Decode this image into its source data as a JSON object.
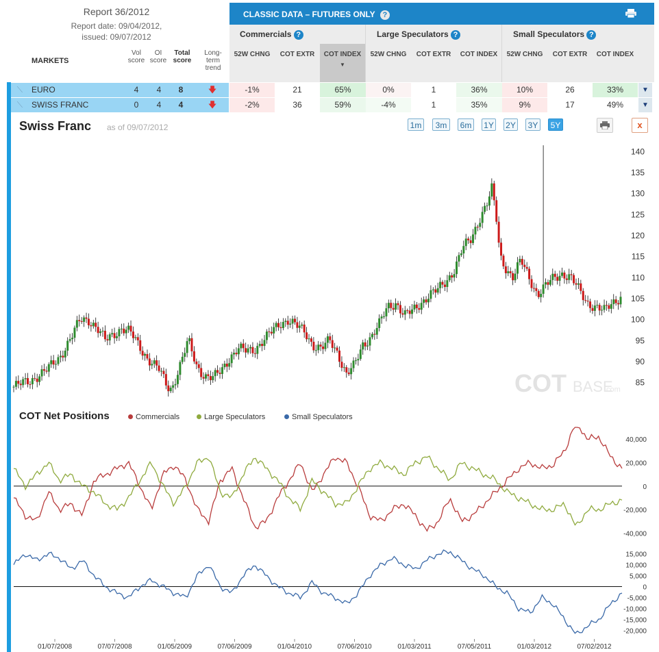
{
  "report": {
    "title": "Report 36/2012",
    "date": "Report date: 09/04/2012,",
    "issued": "issued: 09/07/2012"
  },
  "headers": {
    "markets": "MARKETS",
    "vol_score": "Vol score",
    "oi_score": "OI score",
    "total_score": "Total score",
    "trend": "Long-term trend"
  },
  "classic": {
    "title": "CLASSIC DATA – FUTURES ONLY",
    "help": "?",
    "groups": [
      "Commercials",
      "Large Speculators",
      "Small Speculators"
    ],
    "subcols": [
      "52W CHNG",
      "COT EXTR",
      "COT INDEX",
      "52W CHNG",
      "COT EXTR",
      "COT INDEX",
      "52W CHNG",
      "COT EXTR",
      "COT INDEX"
    ]
  },
  "rows": [
    {
      "market": "EURO",
      "vol": "4",
      "oi": "4",
      "total": "8",
      "values": [
        "-1%",
        "21",
        "65%",
        "0%",
        "1",
        "36%",
        "10%",
        "26",
        "33%"
      ]
    },
    {
      "market": "SWISS FRANC",
      "vol": "0",
      "oi": "4",
      "total": "4",
      "values": [
        "-2%",
        "36",
        "59%",
        "-4%",
        "1",
        "35%",
        "9%",
        "17",
        "49%"
      ]
    }
  ],
  "chart_header": {
    "title": "Swiss Franc",
    "as_of": "as of 09/07/2012",
    "ranges": [
      "1m",
      "3m",
      "6m",
      "1Y",
      "2Y",
      "3Y",
      "5Y"
    ],
    "active_range": "5Y",
    "close": "x"
  },
  "watermark": {
    "main": "COT",
    "suffix": "BASE",
    "dom": ".com"
  },
  "colors": {
    "commercials": "#b83c3c",
    "large": "#8faa3e",
    "small": "#3a69a8",
    "up": "#2e8b2e",
    "down": "#cc1a1a"
  },
  "cot": {
    "title": "COT Net Positions",
    "legend": [
      "Commercials",
      "Large Speculators",
      "Small Speculators"
    ]
  },
  "chart_data": [
    {
      "type": "candlestick",
      "title": "Swiss Franc",
      "ylim": [
        82,
        142
      ],
      "y_ticks": [
        85,
        90,
        95,
        100,
        105,
        110,
        115,
        120,
        125,
        130,
        135,
        140
      ],
      "x_ticks": [
        "01/07/2008",
        "07/07/2008",
        "01/05/2009",
        "07/06/2009",
        "01/04/2010",
        "07/06/2010",
        "01/03/2011",
        "07/05/2011",
        "01/03/2012",
        "07/02/2012"
      ],
      "trend_points": [
        [
          0,
          84
        ],
        [
          4,
          85.5
        ],
        [
          8,
          88
        ],
        [
          11,
          91
        ],
        [
          14,
          96
        ],
        [
          16,
          100
        ],
        [
          18,
          100
        ],
        [
          20,
          98
        ],
        [
          22,
          95
        ],
        [
          26,
          98
        ],
        [
          28,
          97
        ],
        [
          30,
          94
        ],
        [
          32,
          91
        ],
        [
          35,
          88
        ],
        [
          37,
          84
        ],
        [
          38,
          83.5
        ],
        [
          40,
          89
        ],
        [
          42,
          95
        ],
        [
          44,
          89
        ],
        [
          46,
          86.5
        ],
        [
          48,
          86
        ],
        [
          50,
          88
        ],
        [
          52,
          91
        ],
        [
          54,
          93
        ],
        [
          56,
          92.5
        ],
        [
          58,
          93
        ],
        [
          60,
          95
        ],
        [
          62,
          97
        ],
        [
          64,
          99
        ],
        [
          66,
          100
        ],
        [
          68,
          98.5
        ],
        [
          70,
          97
        ],
        [
          72,
          94
        ],
        [
          74,
          93
        ],
        [
          76,
          95
        ],
        [
          78,
          92
        ],
        [
          80,
          87
        ],
        [
          82,
          89
        ],
        [
          84,
          94
        ],
        [
          86,
          96
        ],
        [
          88,
          99
        ],
        [
          90,
          103
        ],
        [
          92,
          104
        ],
        [
          94,
          101
        ],
        [
          96,
          102
        ],
        [
          98,
          104
        ],
        [
          100,
          106
        ],
        [
          102,
          107
        ],
        [
          104,
          109
        ],
        [
          106,
          112
        ],
        [
          108,
          117
        ],
        [
          110,
          119
        ],
        [
          112,
          124
        ],
        [
          114,
          128
        ],
        [
          115,
          131
        ],
        [
          116,
          125
        ],
        [
          117,
          115
        ],
        [
          118,
          113
        ],
        [
          120,
          110
        ],
        [
          122,
          114
        ],
        [
          124,
          110
        ],
        [
          126,
          106
        ],
        [
          128,
          108
        ],
        [
          130,
          110
        ],
        [
          132,
          111
        ],
        [
          134,
          110
        ],
        [
          136,
          107
        ],
        [
          138,
          104
        ],
        [
          140,
          103
        ],
        [
          142,
          102
        ],
        [
          144,
          104
        ],
        [
          146,
          105.5
        ]
      ]
    },
    {
      "type": "line",
      "title": "COT Net Positions",
      "ylim": [
        -45000,
        50000
      ],
      "y_ticks": [
        -40000,
        -20000,
        0,
        20000,
        40000
      ],
      "y_tick_labels": [
        "-40,000",
        "-20,000",
        "0",
        "20,000",
        "40,000"
      ],
      "series": [
        {
          "name": "Commercials",
          "values": [
            -10000,
            -25000,
            -30000,
            -5000,
            -20000,
            -15000,
            -25000,
            5000,
            10000,
            15000,
            20000,
            0,
            -20000,
            10000,
            18000,
            5000,
            -20000,
            -30000,
            5000,
            15000,
            -10000,
            -35000,
            -30000,
            -10000,
            5000,
            20000,
            -5000,
            10000,
            25000,
            20000,
            0,
            -25000,
            -30000,
            -20000,
            -15000,
            -25000,
            -38000,
            -30000,
            -10000,
            -30000,
            -25000,
            -15000,
            -5000,
            5000,
            15000,
            20000,
            15000,
            18000,
            30000,
            55000,
            40000,
            42000,
            25000,
            15000
          ]
        },
        {
          "name": "Large Speculators",
          "values": [
            15000,
            0,
            10000,
            20000,
            5000,
            10000,
            0,
            -5000,
            -15000,
            -20000,
            -10000,
            5000,
            20000,
            0,
            -15000,
            0,
            20000,
            25000,
            -5000,
            -10000,
            10000,
            25000,
            15000,
            5000,
            -10000,
            -20000,
            5000,
            -5000,
            -15000,
            -15000,
            0,
            15000,
            20000,
            15000,
            10000,
            20000,
            25000,
            15000,
            5000,
            20000,
            15000,
            10000,
            5000,
            -5000,
            -10000,
            -15000,
            -20000,
            -20000,
            -15000,
            -35000,
            -20000,
            -20000,
            -15000,
            -12000
          ]
        }
      ]
    },
    {
      "type": "line",
      "title": "Small Speculators",
      "ylim": [
        -23000,
        18000
      ],
      "y_ticks": [
        -20000,
        -15000,
        -10000,
        -5000,
        0,
        5000,
        10000,
        15000
      ],
      "y_tick_labels": [
        "-20,000",
        "-15,000",
        "-10,000",
        "-5,000",
        "0",
        "5,000",
        "10,000",
        "15,000"
      ],
      "series": [
        {
          "name": "Small Speculators",
          "values": [
            10000,
            15000,
            12000,
            15000,
            13000,
            8000,
            12000,
            5000,
            0,
            -3000,
            -5000,
            0,
            3000,
            0,
            -3000,
            -5000,
            5000,
            10000,
            0,
            -3000,
            5000,
            10000,
            5000,
            0,
            -3000,
            -5000,
            2000,
            -3000,
            -5000,
            -8000,
            -3000,
            5000,
            10000,
            13000,
            10000,
            8000,
            12000,
            15000,
            16000,
            12000,
            8000,
            5000,
            0,
            -3000,
            -10000,
            -12000,
            -5000,
            -8000,
            -15000,
            -22000,
            -18000,
            -15000,
            -8000,
            -3000
          ]
        }
      ]
    }
  ]
}
